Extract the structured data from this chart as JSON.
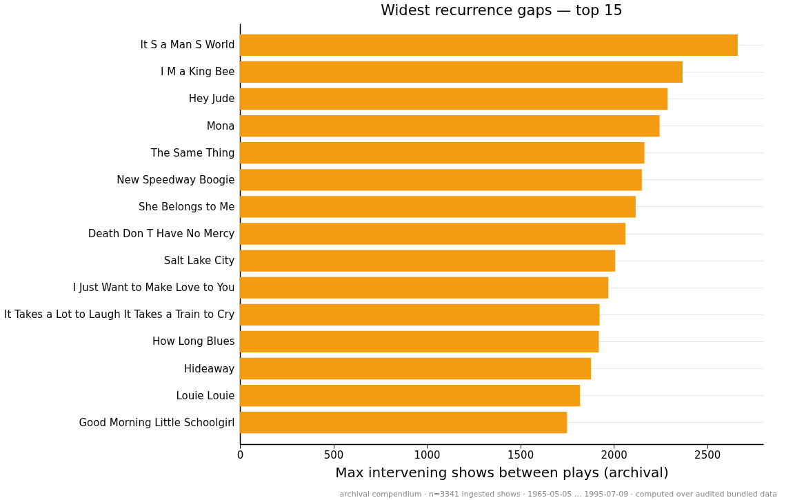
{
  "chart_data": {
    "type": "bar",
    "orientation": "horizontal",
    "title": "Widest recurrence gaps — top 15",
    "xlabel": "Max intervening shows between plays (archival)",
    "categories": [
      "It S a Man S World",
      "I M a King Bee",
      "Hey Jude",
      "Mona",
      "The Same Thing",
      "New Speedway Boogie",
      "She Belongs to Me",
      "Death Don T Have No Mercy",
      "Salt Lake City",
      "I Just Want to Make Love to You",
      "It Takes a Lot to Laugh It Takes a Train to Cry",
      "How Long Blues",
      "Hideaway",
      "Louie Louie",
      "Good Morning Little Schoolgirl"
    ],
    "values": [
      2663,
      2368,
      2288,
      2245,
      2164,
      2150,
      2117,
      2062,
      2008,
      1971,
      1924,
      1920,
      1878,
      1819,
      1750
    ],
    "color": "#f39c12",
    "xlim": [
      0,
      2800
    ],
    "xticks": [
      0,
      500,
      1000,
      1500,
      2000,
      2500
    ],
    "grid": "y",
    "annotations": [
      "archival compendium · n=3341 ingested shows · 1965-05-05 … 1995-07-09 · computed over audited bundled data"
    ]
  }
}
